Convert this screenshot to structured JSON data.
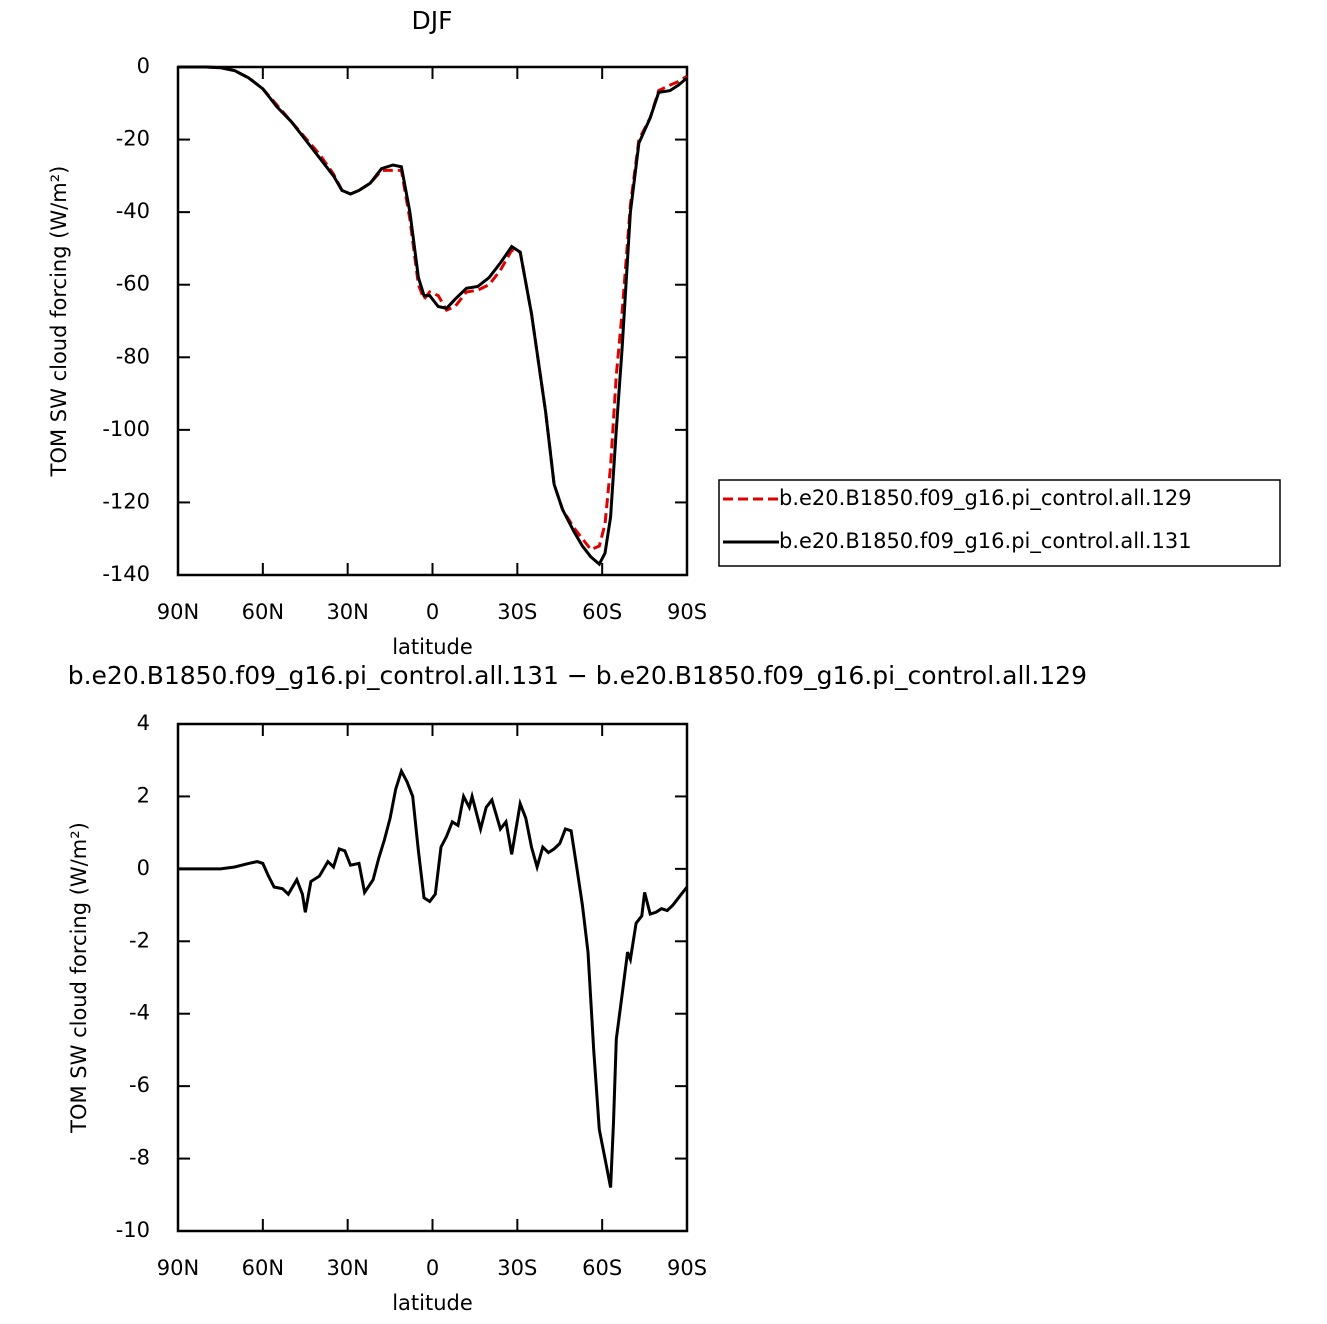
{
  "chart_data": [
    {
      "type": "line",
      "title": "DJF",
      "xlabel": "latitude",
      "ylabel": "TOM SW cloud forcing (W/m²)",
      "x": [
        90,
        80,
        75,
        70,
        65,
        60,
        55,
        50,
        45,
        40,
        35,
        32,
        29,
        26,
        22,
        18,
        14,
        11,
        8,
        5,
        3,
        1,
        -2,
        -5,
        -8,
        -12,
        -16,
        -20,
        -24,
        -28,
        -31,
        -35,
        -40,
        -43,
        -46,
        -50,
        -53,
        -56,
        -59,
        -61,
        -63,
        -65,
        -67,
        -70,
        -73,
        -77,
        -80,
        -84,
        -87,
        -90
      ],
      "series": [
        {
          "name": "b.e20.B1850.f09_g16.pi_control.all.129",
          "color": "#e00000",
          "dashed": true,
          "values": [
            0,
            0,
            -0.2,
            -1,
            -3,
            -6,
            -10.5,
            -15,
            -19.5,
            -24,
            -29.5,
            -34,
            -35,
            -34,
            -32,
            -28.5,
            -28.5,
            -28.5,
            -42,
            -60,
            -64,
            -62,
            -63,
            -67,
            -66,
            -62,
            -61.5,
            -60,
            -56,
            -50.5,
            -51,
            -68,
            -95,
            -115,
            -122,
            -127,
            -130,
            -133,
            -132,
            -126,
            -110,
            -85,
            -68,
            -38,
            -20,
            -14,
            -6.5,
            -5,
            -4,
            -2.5
          ]
        },
        {
          "name": "b.e20.B1850.f09_g16.pi_control.all.131",
          "color": "#000000",
          "dashed": false,
          "values": [
            0,
            0,
            -0.2,
            -1,
            -3,
            -6,
            -11,
            -15,
            -20,
            -25,
            -30,
            -34,
            -35,
            -34,
            -32,
            -28,
            -27,
            -27.5,
            -40,
            -58,
            -63,
            -63,
            -66,
            -66.5,
            -64,
            -61,
            -60.5,
            -58,
            -54,
            -49.5,
            -51,
            -68,
            -95,
            -115,
            -122,
            -128,
            -132,
            -135,
            -137,
            -134,
            -124,
            -100,
            -78,
            -40,
            -21,
            -14,
            -7,
            -6.5,
            -5,
            -3
          ]
        }
      ],
      "xlim": [
        90,
        -90
      ],
      "xticks": [
        {
          "value": 90,
          "label": "90N"
        },
        {
          "value": 60,
          "label": "60N"
        },
        {
          "value": 30,
          "label": "30N"
        },
        0,
        {
          "value": -30,
          "label": "30S"
        },
        {
          "value": -60,
          "label": "60S"
        },
        {
          "value": -90,
          "label": "90S"
        }
      ],
      "ylim": [
        -140,
        0
      ],
      "yticks": [
        0,
        -20,
        -40,
        -60,
        -80,
        -100,
        -120,
        -140
      ],
      "grid": false,
      "legend": "right"
    },
    {
      "type": "line",
      "title": "b.e20.B1850.f09_g16.pi_control.all.131 − b.e20.B1850.f09_g16.pi_control.all.129",
      "xlabel": "latitude",
      "ylabel": "TOM SW cloud forcing (W/m²)",
      "x": [
        90,
        75,
        70,
        65,
        62,
        60,
        58,
        56,
        53,
        51,
        48,
        46,
        45,
        43,
        40,
        37,
        35,
        33,
        31,
        29,
        26,
        24,
        21,
        19,
        17,
        15,
        13,
        11,
        9,
        7,
        5,
        3,
        1,
        -1,
        -3,
        -5,
        -7,
        -9,
        -11,
        -13,
        -14,
        -17,
        -19,
        -21,
        -24,
        -26,
        -28,
        -31,
        -33,
        -35,
        -37,
        -39,
        -41,
        -43,
        -45,
        -47,
        -49,
        -51,
        -53,
        -55,
        -57,
        -59,
        -61,
        -63,
        -64,
        -65,
        -67,
        -69,
        -70,
        -72,
        -74,
        -75,
        -77,
        -79,
        -81,
        -83,
        -85,
        -87,
        -90
      ],
      "series": [
        {
          "color": "#000000",
          "dashed": false,
          "values": [
            0,
            0,
            0.05,
            0.15,
            0.2,
            0.15,
            -0.2,
            -0.5,
            -0.55,
            -0.7,
            -0.3,
            -0.7,
            -1.2,
            -0.35,
            -0.2,
            0.2,
            0.05,
            0.55,
            0.5,
            0.1,
            0.15,
            -0.65,
            -0.3,
            0.3,
            0.8,
            1.4,
            2.2,
            2.7,
            2.4,
            2.0,
            0.5,
            -0.8,
            -0.9,
            -0.7,
            0.6,
            0.9,
            1.3,
            1.2,
            2.0,
            1.7,
            2.0,
            1.1,
            1.7,
            1.9,
            1.1,
            1.3,
            0.4,
            1.8,
            1.4,
            0.6,
            0.05,
            0.6,
            0.45,
            0.55,
            0.7,
            1.1,
            1.05,
            0.05,
            -1,
            -2.3,
            -5,
            -7.2,
            -8,
            -8.8,
            -7,
            -4.7,
            -3.5,
            -2.3,
            -2.5,
            -1.5,
            -1.3,
            -0.65,
            -1.25,
            -1.2,
            -1.1,
            -1.15,
            -1.0,
            -0.8,
            -0.5
          ]
        }
      ],
      "xlim": [
        90,
        -90
      ],
      "xticks": [
        {
          "value": 90,
          "label": "90N"
        },
        {
          "value": 60,
          "label": "60N"
        },
        {
          "value": 30,
          "label": "30N"
        },
        0,
        {
          "value": -30,
          "label": "30S"
        },
        {
          "value": -60,
          "label": "60S"
        },
        {
          "value": -90,
          "label": "90S"
        }
      ],
      "ylim": [
        -10,
        4
      ],
      "yticks": [
        4,
        2,
        0,
        -2,
        -4,
        -6,
        -8,
        -10
      ],
      "grid": false
    }
  ]
}
